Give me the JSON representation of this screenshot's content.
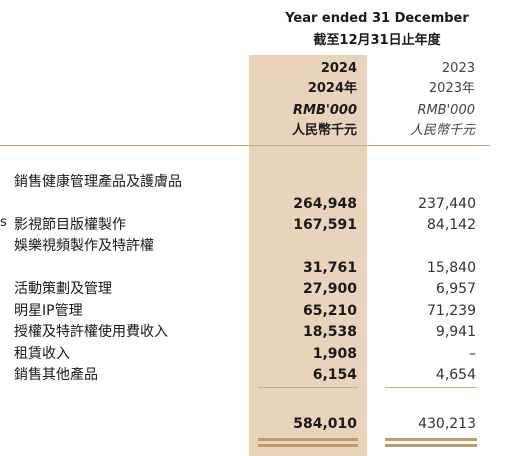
{
  "header": {
    "period_en": "Year ended 31 December",
    "period_zh": "截至12月31日止年度"
  },
  "columns": {
    "y2024": {
      "year": "2024",
      "year_zh": "2024年",
      "unit_en": "RMB'000",
      "unit_zh": "人民幣千元"
    },
    "y2023": {
      "year": "2023",
      "year_zh": "2023年",
      "unit_en": "RMB'000",
      "unit_zh": "人民幣千元"
    }
  },
  "edge_text": "s",
  "rows": [
    {
      "label": "銷售健康管理產品及護膚品",
      "v2024": "",
      "v2023": ""
    },
    {
      "label": "",
      "v2024": "264,948",
      "v2023": "237,440"
    },
    {
      "label": "影視節目版權製作",
      "v2024": "167,591",
      "v2023": "84,142"
    },
    {
      "label": "娛樂視頻製作及特許權",
      "v2024": "",
      "v2023": ""
    },
    {
      "label": "",
      "v2024": "31,761",
      "v2023": "15,840"
    },
    {
      "label": "活動策劃及管理",
      "v2024": "27,900",
      "v2023": "6,957"
    },
    {
      "label": "明星IP管理",
      "v2024": "65,210",
      "v2023": "71,239"
    },
    {
      "label": "授權及特許權使用費收入",
      "v2024": "18,538",
      "v2023": "9,941"
    },
    {
      "label": "租賃收入",
      "v2024": "1,908",
      "v2023": "–"
    },
    {
      "label": "銷售其他產品",
      "v2024": "6,154",
      "v2023": "4,654"
    }
  ],
  "total": {
    "v2024": "584,010",
    "v2023": "430,213"
  },
  "colors": {
    "highlight": "#e7d4ba",
    "rule": "#c9ac86",
    "double_rule": "#c29a6a"
  }
}
